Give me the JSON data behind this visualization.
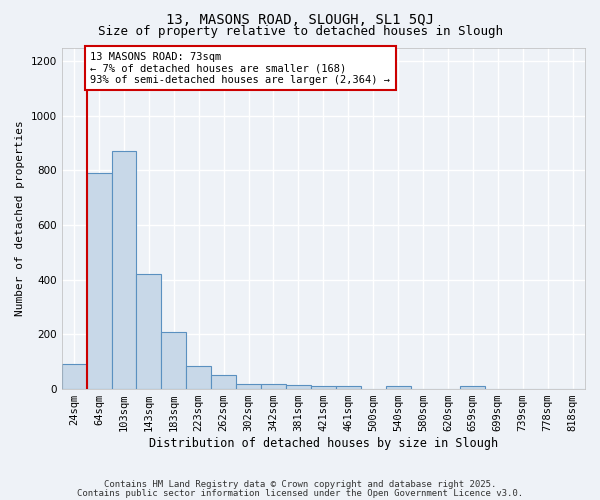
{
  "title1": "13, MASONS ROAD, SLOUGH, SL1 5QJ",
  "title2": "Size of property relative to detached houses in Slough",
  "xlabel": "Distribution of detached houses by size in Slough",
  "ylabel": "Number of detached properties",
  "categories": [
    "24sqm",
    "64sqm",
    "103sqm",
    "143sqm",
    "183sqm",
    "223sqm",
    "262sqm",
    "302sqm",
    "342sqm",
    "381sqm",
    "421sqm",
    "461sqm",
    "500sqm",
    "540sqm",
    "580sqm",
    "620sqm",
    "659sqm",
    "699sqm",
    "739sqm",
    "778sqm",
    "818sqm"
  ],
  "values": [
    90,
    790,
    870,
    420,
    210,
    85,
    50,
    20,
    20,
    15,
    10,
    10,
    0,
    10,
    0,
    0,
    10,
    0,
    0,
    0,
    0
  ],
  "bar_color": "#c8d8e8",
  "bar_edge_color": "#5a90c0",
  "red_line_index": 1,
  "annotation_text": "13 MASONS ROAD: 73sqm\n← 7% of detached houses are smaller (168)\n93% of semi-detached houses are larger (2,364) →",
  "annotation_box_color": "#ffffff",
  "annotation_box_edge_color": "#cc0000",
  "red_line_color": "#cc0000",
  "ylim": [
    0,
    1250
  ],
  "yticks": [
    0,
    200,
    400,
    600,
    800,
    1000,
    1200
  ],
  "background_color": "#eef2f7",
  "grid_color": "#ffffff",
  "footer1": "Contains HM Land Registry data © Crown copyright and database right 2025.",
  "footer2": "Contains public sector information licensed under the Open Government Licence v3.0.",
  "title1_fontsize": 10,
  "title2_fontsize": 9,
  "xlabel_fontsize": 8.5,
  "ylabel_fontsize": 8,
  "tick_fontsize": 7.5,
  "annotation_fontsize": 7.5,
  "footer_fontsize": 6.5
}
